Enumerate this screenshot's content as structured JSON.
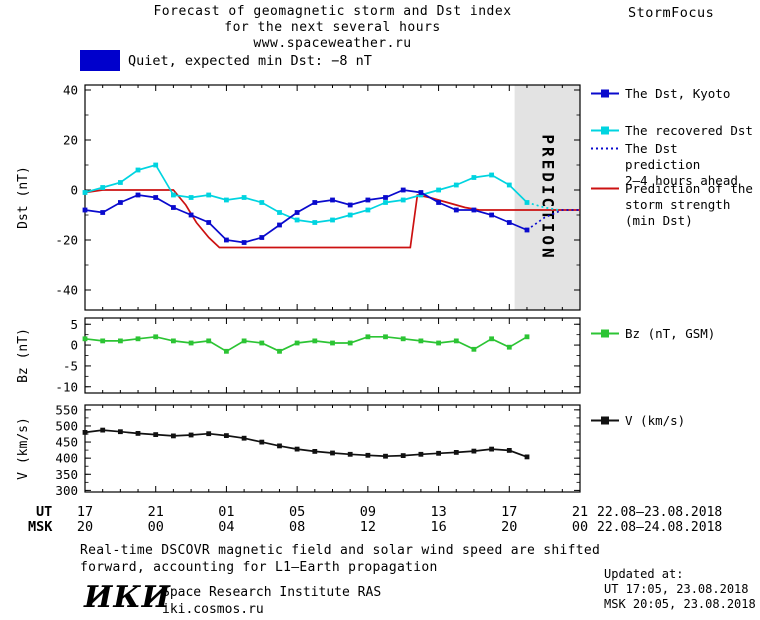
{
  "header": {
    "title_line1": "Forecast of geomagnetic storm and Dst index",
    "title_line2": "for the next several hours",
    "title_line3": "www.spaceweather.ru",
    "brand": "StormFocus"
  },
  "status": {
    "label": "Quiet, expected min Dst: −8 nT",
    "swatch_color": "#0000cc"
  },
  "axes": {
    "ut_label": "UT",
    "msk_label": "MSK",
    "ut_ticks": [
      "17",
      "21",
      "01",
      "05",
      "09",
      "13",
      "17",
      "21"
    ],
    "msk_ticks": [
      "20",
      "00",
      "04",
      "08",
      "12",
      "16",
      "20",
      "00"
    ],
    "ut_range": "22.08–23.08.2018",
    "msk_range": "22.08–24.08.2018"
  },
  "legend": {
    "items": [
      {
        "id": "dst-kyoto",
        "color": "#0a0acd",
        "style": "solid",
        "marker": true,
        "lines": [
          "The Dst, Kyoto"
        ]
      },
      {
        "id": "recovered-dst",
        "color": "#00d4e0",
        "style": "solid",
        "marker": true,
        "lines": [
          "The recovered Dst"
        ]
      },
      {
        "id": "dst-prediction",
        "color": "#0a0acd",
        "style": "dotted",
        "marker": false,
        "lines": [
          "The Dst prediction",
          "2–4 hours ahead"
        ]
      },
      {
        "id": "storm-strength",
        "color": "#cc1111",
        "style": "solid",
        "marker": false,
        "lines": [
          "Prediction of the",
          "storm strength",
          "(min Dst)"
        ]
      },
      {
        "id": "bz",
        "color": "#2cc434",
        "style": "solid",
        "marker": true,
        "lines": [
          "Bz (nT, GSM)"
        ]
      },
      {
        "id": "v",
        "color": "#111111",
        "style": "solid",
        "marker": true,
        "lines": [
          "V (km/s)"
        ]
      }
    ]
  },
  "footer": {
    "note_line1": "Real-time DSCOVR magnetic field and solar wind speed are shifted",
    "note_line2": "forward, accounting for L1–Earth propagation",
    "updated_label": "Updated at:",
    "updated_ut": "UT  17:05, 23.08.2018",
    "updated_msk": "MSK 20:05, 23.08.2018",
    "logo": "ИКИ",
    "institute": "Space Research Institute RAS",
    "site": "iki.cosmos.ru"
  },
  "chart_data": [
    {
      "id": "dst",
      "type": "line",
      "title": "Forecast of geomagnetic storm and Dst index for the next several hours",
      "ylabel": "Dst (nT)",
      "ylim": [
        -48,
        42
      ],
      "yticks": [
        40,
        20,
        0,
        -20,
        -40
      ],
      "yminor": 10,
      "xlim": [
        0,
        28
      ],
      "xticks": [
        0,
        4,
        8,
        12,
        16,
        20,
        24,
        28
      ],
      "prediction_band": {
        "x0": 24.3,
        "x1": 28,
        "label": "PREDICTION"
      },
      "series": [
        {
          "name": "storm-strength-prediction",
          "color": "#cc1111",
          "markers": false,
          "style": "solid",
          "x": [
            0,
            1,
            5,
            5.7,
            6.3,
            7,
            7.6,
            18.4,
            18.8,
            19.5,
            20.5,
            21.5,
            22.3,
            28
          ],
          "y": [
            -1,
            0,
            0,
            -6,
            -13,
            -19,
            -23,
            -23,
            -2,
            -3,
            -5,
            -7,
            -8,
            -8
          ]
        },
        {
          "name": "recovered-dst",
          "color": "#00d4e0",
          "markers": true,
          "style": "solid",
          "x": [
            0,
            1,
            2,
            3,
            4,
            5,
            6,
            7,
            8,
            9,
            10,
            11,
            12,
            13,
            14,
            15,
            16,
            17,
            18,
            19,
            20,
            21,
            22,
            23,
            24,
            25
          ],
          "y": [
            -1,
            1,
            3,
            8,
            10,
            -2,
            -3,
            -2,
            -4,
            -3,
            -5,
            -9,
            -12,
            -13,
            -12,
            -10,
            -8,
            -5,
            -4,
            -2,
            0,
            2,
            5,
            6,
            2,
            -5
          ]
        },
        {
          "name": "dst-kyoto",
          "color": "#0a0acd",
          "markers": true,
          "style": "solid",
          "x": [
            0,
            1,
            2,
            3,
            4,
            5,
            6,
            7,
            8,
            9,
            10,
            11,
            12,
            13,
            14,
            15,
            16,
            17,
            18,
            19,
            20,
            21,
            22,
            23,
            24,
            25
          ],
          "y": [
            -8,
            -9,
            -5,
            -2,
            -3,
            -7,
            -10,
            -13,
            -20,
            -21,
            -19,
            -14,
            -9,
            -5,
            -4,
            -6,
            -4,
            -3,
            0,
            -1,
            -5,
            -8,
            -8,
            -10,
            -13,
            -16
          ]
        },
        {
          "name": "dst-prediction-dotted",
          "color": "#0a0acd",
          "markers": false,
          "style": "dotted",
          "x": [
            25,
            26,
            27,
            28
          ],
          "y": [
            -16,
            -11,
            -8,
            -8
          ]
        },
        {
          "name": "recovered-prediction-dotted",
          "color": "#00d4e0",
          "markers": false,
          "style": "dotted",
          "x": [
            25,
            26,
            26.8
          ],
          "y": [
            -5,
            -7,
            -8
          ]
        }
      ]
    },
    {
      "id": "bz",
      "type": "line",
      "ylabel": "Bz (nT)",
      "ylim": [
        -11.5,
        6.5
      ],
      "yticks": [
        5,
        0,
        -5,
        -10
      ],
      "yminor": 2.5,
      "xlim": [
        0,
        28
      ],
      "xticks": [
        0,
        4,
        8,
        12,
        16,
        20,
        24,
        28
      ],
      "series": [
        {
          "name": "bz-gsm",
          "color": "#2cc434",
          "markers": true,
          "style": "solid",
          "x": [
            0,
            1,
            2,
            3,
            4,
            5,
            6,
            7,
            8,
            9,
            10,
            11,
            12,
            13,
            14,
            15,
            16,
            17,
            18,
            19,
            20,
            21,
            22,
            23,
            24,
            25
          ],
          "y": [
            1.5,
            1,
            1,
            1.5,
            2,
            1,
            0.5,
            1,
            -1.5,
            1,
            0.5,
            -1.5,
            0.5,
            1,
            0.5,
            0.5,
            2,
            2,
            1.5,
            1,
            0.5,
            1,
            -1,
            1.5,
            -0.5,
            2
          ]
        }
      ]
    },
    {
      "id": "v",
      "type": "line",
      "ylabel": "V (km/s)",
      "ylim": [
        295,
        565
      ],
      "yticks": [
        550,
        500,
        450,
        400,
        350,
        300
      ],
      "yminor": 25,
      "xlim": [
        0,
        28
      ],
      "xticks": [
        0,
        4,
        8,
        12,
        16,
        20,
        24,
        28
      ],
      "series": [
        {
          "name": "solar-wind-speed",
          "color": "#111111",
          "markers": true,
          "style": "solid",
          "x": [
            0,
            1,
            2,
            3,
            4,
            5,
            6,
            7,
            8,
            9,
            10,
            11,
            12,
            13,
            14,
            15,
            16,
            17,
            18,
            19,
            20,
            21,
            22,
            23,
            24,
            25
          ],
          "y": [
            480,
            487,
            482,
            477,
            473,
            469,
            472,
            476,
            470,
            462,
            450,
            438,
            428,
            421,
            416,
            412,
            409,
            406,
            408,
            412,
            415,
            418,
            422,
            428,
            424,
            404
          ]
        }
      ]
    }
  ]
}
